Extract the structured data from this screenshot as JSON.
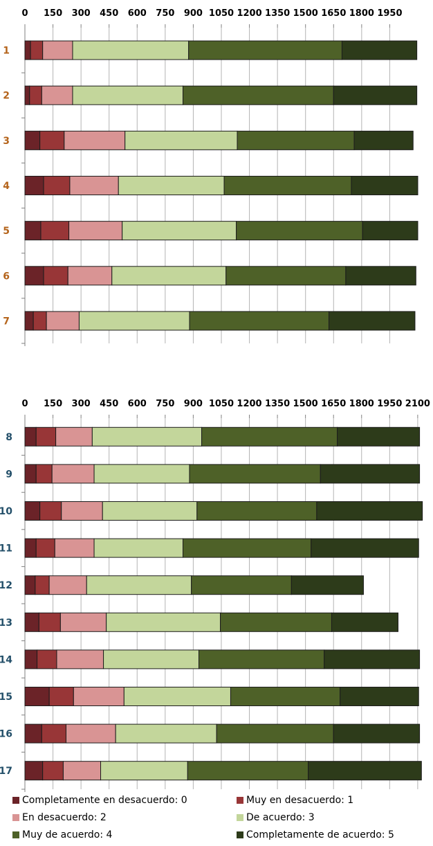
{
  "series_colors": [
    "#6b2328",
    "#983637",
    "#d99494",
    "#c3d69b",
    "#4e6128",
    "#2d3b1a"
  ],
  "legend": {
    "items": [
      {
        "label": "Completamente en desacuerdo: 0",
        "color": "#6b2328"
      },
      {
        "label": "Muy en desacuerdo: 1",
        "color": "#983637"
      },
      {
        "label": "En desacuerdo: 2",
        "color": "#d99494"
      },
      {
        "label": "De acuerdo: 3",
        "color": "#c3d69b"
      },
      {
        "label": "Muy de acuerdo: 4",
        "color": "#4e6128"
      },
      {
        "label": "Completamente de acuerdo: 5",
        "color": "#2d3b1a"
      }
    ]
  },
  "chart_data": [
    {
      "type": "bar",
      "orientation": "horizontal",
      "stacked": true,
      "categories": [
        "1",
        "2",
        "3",
        "4",
        "5",
        "6",
        "7"
      ],
      "category_label_color": "#b5651d",
      "xlim": [
        0,
        2100
      ],
      "xticks": [
        0,
        150,
        300,
        450,
        600,
        750,
        900,
        1050,
        1200,
        1350,
        1500,
        1650,
        1800,
        1950
      ],
      "grid": true,
      "series": [
        {
          "name": "Completamente en desacuerdo: 0",
          "values": [
            30,
            25,
            80,
            100,
            85,
            100,
            45
          ]
        },
        {
          "name": "Muy en desacuerdo: 1",
          "values": [
            65,
            65,
            130,
            140,
            150,
            130,
            70
          ]
        },
        {
          "name": "En desacuerdo: 2",
          "values": [
            160,
            165,
            325,
            260,
            285,
            235,
            175
          ]
        },
        {
          "name": "De acuerdo: 3",
          "values": [
            620,
            590,
            600,
            565,
            610,
            610,
            590
          ]
        },
        {
          "name": "Muy de acuerdo: 4",
          "values": [
            820,
            805,
            625,
            680,
            675,
            640,
            745
          ]
        },
        {
          "name": "Completamente de acuerdo: 5",
          "values": [
            400,
            445,
            315,
            355,
            295,
            375,
            460
          ]
        }
      ]
    },
    {
      "type": "bar",
      "orientation": "horizontal",
      "stacked": true,
      "categories": [
        "8",
        "9",
        "10",
        "11",
        "12",
        "13",
        "14",
        "15",
        "16",
        "17"
      ],
      "category_label_color": "#24506a",
      "xlim": [
        0,
        2130
      ],
      "xticks": [
        0,
        150,
        300,
        450,
        600,
        750,
        900,
        1050,
        1200,
        1350,
        1500,
        1650,
        1800,
        1950,
        2100
      ],
      "grid": true,
      "series": [
        {
          "name": "Completamente en desacuerdo: 0",
          "values": [
            60,
            60,
            80,
            60,
            55,
            75,
            65,
            130,
            90,
            95
          ]
        },
        {
          "name": "Muy en desacuerdo: 1",
          "values": [
            105,
            85,
            115,
            100,
            75,
            115,
            105,
            130,
            130,
            110
          ]
        },
        {
          "name": "En desacuerdo: 2",
          "values": [
            195,
            225,
            220,
            210,
            200,
            245,
            250,
            270,
            265,
            200
          ]
        },
        {
          "name": "De acuerdo: 3",
          "values": [
            585,
            510,
            505,
            475,
            560,
            610,
            510,
            570,
            540,
            465
          ]
        },
        {
          "name": "Muy de acuerdo: 4",
          "values": [
            725,
            700,
            640,
            685,
            535,
            595,
            670,
            585,
            625,
            645
          ]
        },
        {
          "name": "Completamente de acuerdo: 5",
          "values": [
            440,
            530,
            565,
            575,
            385,
            355,
            510,
            420,
            460,
            605
          ]
        }
      ]
    }
  ]
}
